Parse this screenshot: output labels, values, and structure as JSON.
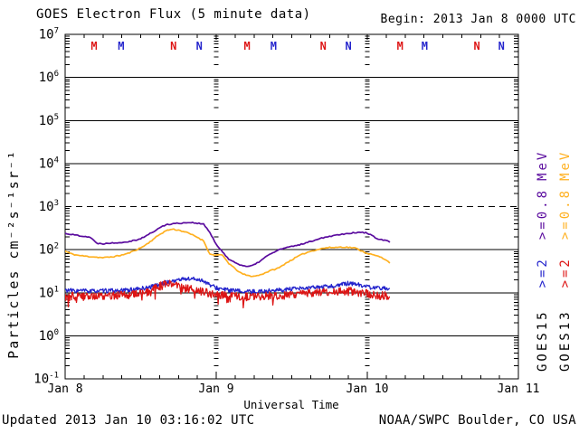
{
  "title": "GOES Electron Flux (5 minute data)",
  "begin_label": "Begin: 2013 Jan 8 0000 UTC",
  "footer": {
    "updated": "Updated 2013 Jan 10 03:16:02 UTC",
    "credit": "NOAA/SWPC Boulder, CO USA"
  },
  "axes": {
    "ylabel": "Particles cm⁻²s⁻¹sr⁻¹",
    "xlabel": "Universal Time"
  },
  "colors": {
    "goes15_e08": "#5a0b9e",
    "goes13_e08": "#ffb020",
    "goes15_e2": "#2424cc",
    "goes13_e2": "#dd1414",
    "axis": "#000000",
    "background": "#ffffff"
  },
  "legend": {
    "goes15": {
      "satellite": "GOES15",
      "e2": ">=2",
      "e08": ">=0.8",
      "mev": "MeV"
    },
    "goes13": {
      "satellite": "GOES13",
      "e2": ">=2",
      "e08": ">=0.8",
      "mev": "MeV"
    }
  },
  "top_markers": [
    {
      "hour": 4.6,
      "letter": "M",
      "color_ref": "goes13_e2"
    },
    {
      "hour": 8.9,
      "letter": "M",
      "color_ref": "goes15_e2"
    },
    {
      "hour": 17.2,
      "letter": "N",
      "color_ref": "goes13_e2"
    },
    {
      "hour": 21.3,
      "letter": "N",
      "color_ref": "goes15_e2"
    },
    {
      "hour": 28.9,
      "letter": "M",
      "color_ref": "goes13_e2"
    },
    {
      "hour": 33.1,
      "letter": "M",
      "color_ref": "goes15_e2"
    },
    {
      "hour": 41.0,
      "letter": "N",
      "color_ref": "goes13_e2"
    },
    {
      "hour": 45.0,
      "letter": "N",
      "color_ref": "goes15_e2"
    },
    {
      "hour": 53.2,
      "letter": "M",
      "color_ref": "goes13_e2"
    },
    {
      "hour": 57.1,
      "letter": "M",
      "color_ref": "goes15_e2"
    },
    {
      "hour": 65.4,
      "letter": "N",
      "color_ref": "goes13_e2"
    },
    {
      "hour": 69.3,
      "letter": "N",
      "color_ref": "goes15_e2"
    }
  ],
  "chart_data": {
    "type": "line",
    "title": "GOES Electron Flux (5 minute data)",
    "x_label": "Universal Time",
    "y_label": "Particles cm-2 s-1 sr-1",
    "x_unit": "hours since 2013 Jan 8 0000 UTC",
    "x_range_hours": [
      0,
      72
    ],
    "x_tick_hours": [
      0,
      24,
      48,
      72
    ],
    "x_tick_labels": [
      "Jan 8",
      "Jan 9",
      "Jan 10",
      "Jan 11"
    ],
    "x_minor_tick_hours": 3,
    "day_boundary_hours": [
      24,
      48
    ],
    "y_scale": "log10",
    "y_log_exponent_range": [
      -1,
      7
    ],
    "y_tick_exponents": [
      7,
      6,
      5,
      4,
      3,
      2,
      1,
      0,
      -1
    ],
    "threshold_dashed_exponent": 3,
    "grid": "solid line at each decade, dashed alert line at 1e3",
    "legend_position": "right-outside-rotated",
    "x_hours": [
      0,
      1,
      2,
      3,
      4,
      5,
      6,
      7,
      8,
      9,
      10,
      11,
      12,
      13,
      14,
      15,
      16,
      17,
      18,
      19,
      20,
      21,
      22,
      23,
      24,
      25,
      26,
      27,
      28,
      29,
      30,
      31,
      32,
      33,
      34,
      35,
      36,
      37,
      38,
      39,
      40,
      41,
      42,
      43,
      44,
      45,
      46,
      47,
      48,
      49,
      50,
      51,
      51.5
    ],
    "series": [
      {
        "name": "GOES13 >=0.8 MeV",
        "satellite": "GOES13",
        "energy": ">=0.8 MeV",
        "color_ref": "goes13_e08",
        "stroke_width": 1.7,
        "noise_log": 0.013,
        "spike_log": 0,
        "seed": 11,
        "values": [
          92,
          80,
          74,
          71,
          69,
          67,
          65,
          67,
          70,
          75,
          82,
          95,
          110,
          135,
          175,
          225,
          275,
          300,
          285,
          260,
          228,
          195,
          160,
          78,
          75,
          74,
          48,
          36,
          28,
          25,
          24,
          26,
          30,
          34,
          38,
          48,
          58,
          70,
          82,
          92,
          100,
          108,
          112,
          113,
          115,
          113,
          110,
          95,
          82,
          75,
          68,
          58,
          50
        ]
      },
      {
        "name": "GOES15 >=0.8 MeV",
        "satellite": "GOES15",
        "energy": ">=0.8 MeV",
        "color_ref": "goes15_e08",
        "stroke_width": 1.7,
        "noise_log": 0.013,
        "spike_log": 0,
        "seed": 22,
        "values": [
          240,
          225,
          215,
          205,
          195,
          140,
          138,
          142,
          145,
          148,
          155,
          165,
          180,
          215,
          260,
          320,
          380,
          400,
          410,
          420,
          430,
          410,
          390,
          250,
          130,
          90,
          60,
          50,
          44,
          40,
          44,
          55,
          70,
          85,
          100,
          110,
          118,
          128,
          140,
          155,
          175,
          190,
          205,
          218,
          230,
          240,
          248,
          252,
          245,
          200,
          172,
          162,
          152
        ]
      },
      {
        "name": "GOES15 >=2 MeV",
        "satellite": "GOES15",
        "energy": ">=2 MeV",
        "color_ref": "goes15_e2",
        "stroke_width": 1.3,
        "noise_log": 0.05,
        "spike_log": 0,
        "seed": 33,
        "values": [
          11.5,
          11.2,
          11.0,
          11.2,
          10.8,
          11.0,
          11.0,
          11.2,
          11.0,
          11.3,
          11.5,
          11.8,
          12.5,
          13.0,
          14.0,
          15.5,
          17.0,
          18.5,
          20.0,
          21.0,
          21.0,
          20.5,
          19.0,
          15.0,
          13.0,
          12.0,
          11.5,
          11.0,
          10.8,
          10.5,
          10.6,
          10.8,
          11.0,
          11.2,
          11.5,
          11.8,
          12.0,
          12.3,
          12.6,
          13.0,
          13.2,
          13.5,
          14.0,
          14.5,
          15.5,
          16.5,
          16.0,
          15.0,
          13.5,
          13.0,
          12.5,
          13.0,
          12.5
        ]
      },
      {
        "name": "GOES13 >=2 MeV",
        "satellite": "GOES13",
        "energy": ">=2 MeV",
        "color_ref": "goes13_e2",
        "stroke_width": 1.3,
        "noise_log": 0.095,
        "spike_log": 0.2,
        "seed": 44,
        "values": [
          8.0,
          8.2,
          8.4,
          8.1,
          8.3,
          8.5,
          8.4,
          8.6,
          8.5,
          8.7,
          8.9,
          9.2,
          9.6,
          10.5,
          12.0,
          14.0,
          16.5,
          15.5,
          13.5,
          12.5,
          12.0,
          11.5,
          10.5,
          9.6,
          9.0,
          8.6,
          8.4,
          8.2,
          8.0,
          8.0,
          8.2,
          8.4,
          8.5,
          8.6,
          8.6,
          8.8,
          9.0,
          9.2,
          9.5,
          9.8,
          10.0,
          10.2,
          10.5,
          10.6,
          10.8,
          11.0,
          10.5,
          10.0,
          9.5,
          9.0,
          8.6,
          8.5,
          8.0
        ]
      }
    ]
  }
}
